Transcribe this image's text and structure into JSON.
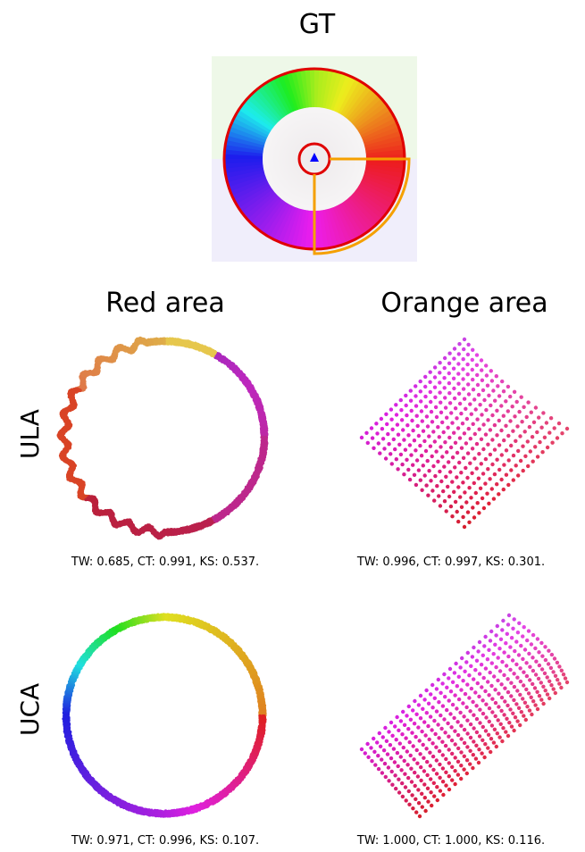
{
  "gt": {
    "title": "GT"
  },
  "columns": {
    "red": "Red area",
    "orange": "Orange area"
  },
  "rows": {
    "ula": "ULA",
    "uca": "UCA"
  },
  "metrics": {
    "ula_red": "TW: 0.685, CT: 0.991, KS: 0.537.",
    "ula_orange": "TW: 0.996, CT: 0.997, KS: 0.301.",
    "uca_red": "TW: 0.971, CT: 0.996, KS: 0.107.",
    "uca_orange": "TW: 1.000, CT: 1.000, KS: 0.116."
  },
  "colors": {
    "red_outline": "#e00000",
    "orange_outline": "#f5a000",
    "marker": "#0000ff"
  }
}
